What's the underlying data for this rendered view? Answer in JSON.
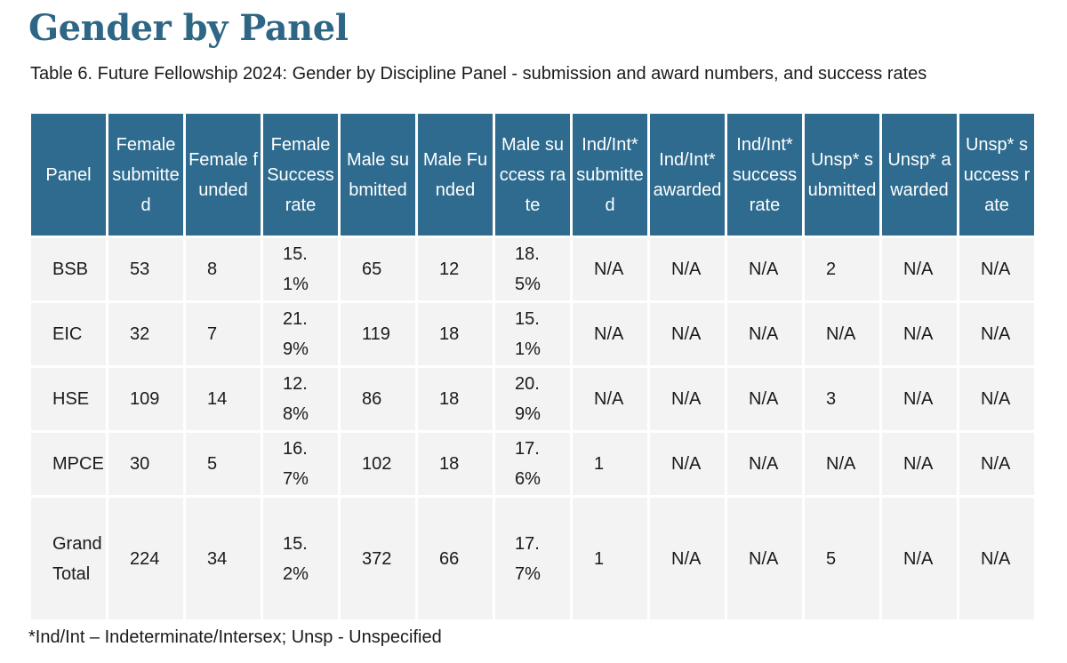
{
  "title": "Gender by Panel",
  "caption": "Table 6. Future Fellowship 2024: Gender by Discipline Panel - submission and award numbers, and success rates",
  "columns": [
    "Panel",
    "Female submitted",
    "Female funded",
    "Female Success rate",
    "Male submitted",
    "Male Funded",
    "Male success rate",
    "Ind/Int* submitted",
    "Ind/Int* awarded",
    "Ind/Int* success rate",
    "Unsp* submitted",
    "Unsp* awarded",
    "Unsp* success rate"
  ],
  "rows": [
    [
      "BSB",
      "53",
      "8",
      "15.1%",
      "65",
      "12",
      "18.5%",
      "N/A",
      "N/A",
      "N/A",
      "2",
      "N/A",
      "N/A"
    ],
    [
      "EIC",
      "32",
      "7",
      "21.9%",
      "119",
      "18",
      "15.1%",
      "N/A",
      "N/A",
      "N/A",
      "N/A",
      "N/A",
      "N/A"
    ],
    [
      "HSE",
      "109",
      "14",
      "12.8%",
      "86",
      "18",
      "20.9%",
      "N/A",
      "N/A",
      "N/A",
      "3",
      "N/A",
      "N/A"
    ],
    [
      "MPCE",
      "30",
      "5",
      "16.7%",
      "102",
      "18",
      "17.6%",
      "1",
      "N/A",
      "N/A",
      "N/A",
      "N/A",
      "N/A"
    ],
    [
      "Grand Total",
      "224",
      "34",
      "15.2%",
      "372",
      "66",
      "17.7%",
      "1",
      "N/A",
      "N/A",
      "5",
      "N/A",
      "N/A"
    ]
  ],
  "footnote": "*Ind/Int – Indeterminate/Intersex; Unsp - Unspecified"
}
